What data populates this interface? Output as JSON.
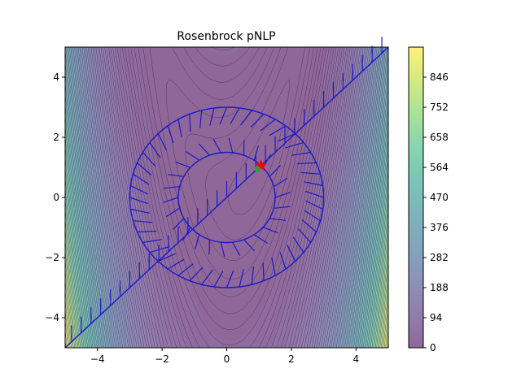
{
  "chart_data": {
    "type": "heatmap",
    "title": "Rosenbrock pNLP",
    "xlabel": "",
    "ylabel": "",
    "xlim": [
      -5,
      5
    ],
    "ylim": [
      -5,
      5
    ],
    "x_ticks": [
      -4,
      -2,
      0,
      2,
      4
    ],
    "y_ticks": [
      -4,
      -2,
      0,
      2,
      4
    ],
    "x_tick_labels": [
      "−4",
      "−2",
      "0",
      "2",
      "4"
    ],
    "y_tick_labels": [
      "−4",
      "−2",
      "0",
      "2",
      "4"
    ],
    "function": "rosenbrock: (1 - x)^2 + (y - x^2)^2",
    "colormap": "viridis",
    "fill_alpha": 0.6,
    "colorbar": {
      "min": 0,
      "max": 940,
      "ticks": [
        0,
        94,
        188,
        282,
        376,
        470,
        564,
        658,
        752,
        846
      ],
      "tick_labels": [
        "0",
        "94",
        "188",
        "282",
        "376",
        "470",
        "564",
        "658",
        "752",
        "846"
      ]
    },
    "constraints": [
      {
        "name": "line y = x",
        "kind": "line",
        "color": "#1a1acc"
      },
      {
        "name": "circle r = 3",
        "kind": "circle",
        "center": [
          0,
          0
        ],
        "radius": 3,
        "color": "#1a1acc"
      },
      {
        "name": "circle r = 1.5",
        "kind": "circle",
        "center": [
          0,
          0
        ],
        "radius": 1.5,
        "color": "#1a1acc"
      }
    ],
    "markers": [
      {
        "name": "optimum",
        "x": 1.06,
        "y": 1.06,
        "shape": "star",
        "color": "#ff0000"
      },
      {
        "name": "start",
        "x": 1.0,
        "y": 1.0,
        "shape": "dot",
        "color": "#2ca02c"
      }
    ]
  }
}
